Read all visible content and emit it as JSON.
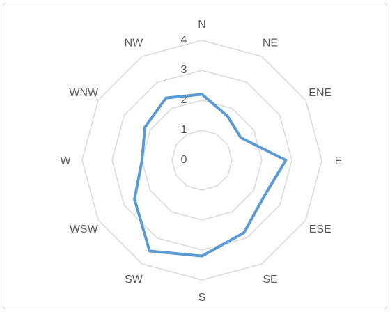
{
  "chart_data": {
    "type": "radar",
    "categories": [
      "N",
      "NE",
      "ENE",
      "E",
      "ESE",
      "SE",
      "S",
      "SW",
      "WSW",
      "W",
      "WNW",
      "NW"
    ],
    "series": [
      {
        "color": "#5b9bd5",
        "values": [
          2.2,
          1.7,
          1.5,
          2.8,
          2.4,
          2.8,
          3.2,
          3.5,
          2.6,
          2.0,
          2.2,
          2.4
        ]
      }
    ],
    "ylim": [
      0,
      4
    ],
    "yticks": [
      0,
      1,
      2,
      3,
      4
    ],
    "grid": true
  }
}
